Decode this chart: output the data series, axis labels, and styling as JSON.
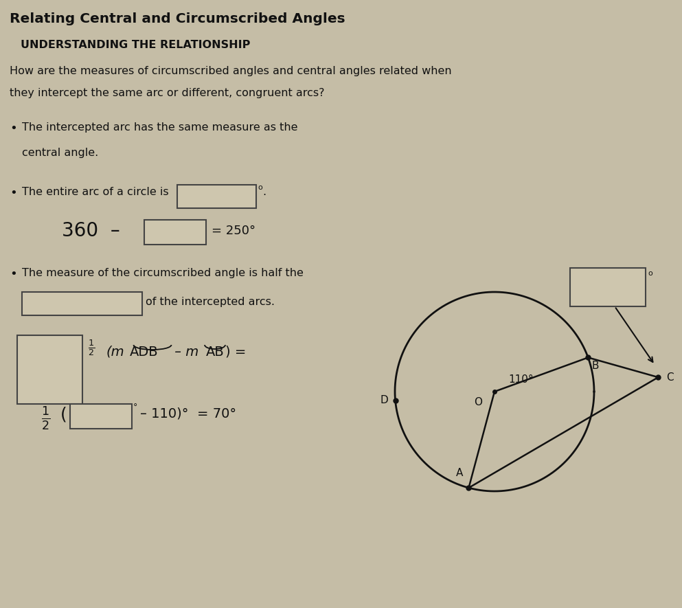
{
  "title": "Relating Central and Circumscribed Angles",
  "subtitle": "UNDERSTANDING THE RELATIONSHIP",
  "q_line1": "How are the measures of circumscribed angles and central angles related when",
  "q_line2": "they intercept the same arc or different, congruent arcs?",
  "b1_line1": "The intercepted arc has the same measure as the",
  "b1_line2": "central angle.",
  "b2_prefix": "The entire arc of a circle is",
  "b2_suffix": ".",
  "eq_prefix": "360  –",
  "eq_suffix": "= 250°",
  "b3_line1": "The measure of the circumscribed angle is half the",
  "b3_blank": "of the intercepted arcs.",
  "bg_color": "#c5bda6",
  "text_color": "#111111",
  "box_facecolor": "#cec6ae",
  "box_edgecolor": "#444444",
  "circle_color": "#111111",
  "angle_110": "110°",
  "label_A": "A",
  "label_B": "B",
  "label_C": "C",
  "label_D": "D",
  "label_O": "O",
  "deg_symbol": "°"
}
